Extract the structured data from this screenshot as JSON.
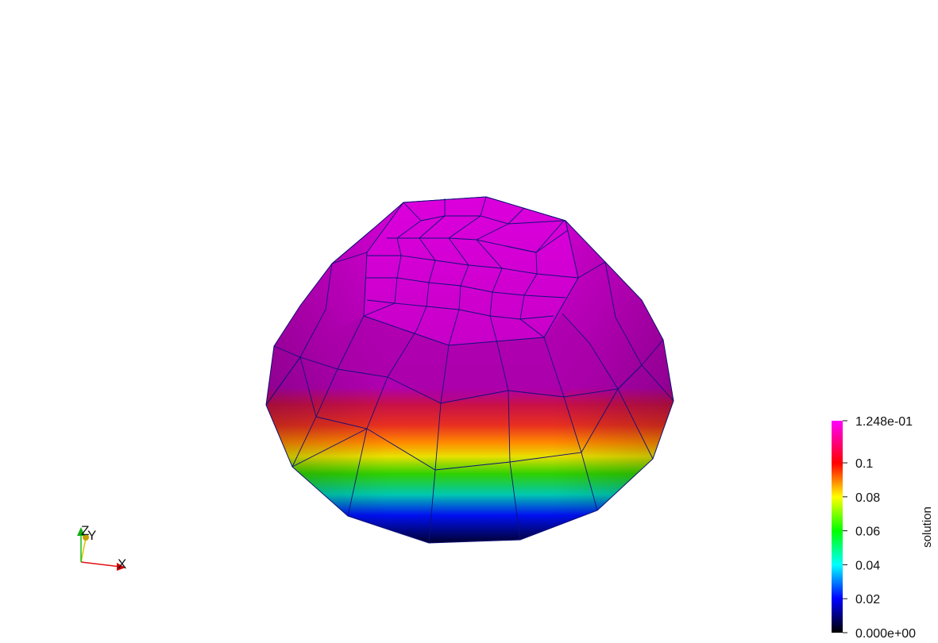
{
  "render_view": {
    "background": "#ffffff",
    "edge_color": "#10107a"
  },
  "colorbar": {
    "title": "solution",
    "max_label": "1.248e-01",
    "min_label": "0.000e+00",
    "range": [
      0,
      0.1248
    ],
    "ticks": [
      {
        "value": 0.1,
        "label": "0.1"
      },
      {
        "value": 0.08,
        "label": "0.08"
      },
      {
        "value": 0.06,
        "label": "0.06"
      },
      {
        "value": 0.04,
        "label": "0.04"
      },
      {
        "value": 0.02,
        "label": "0.02"
      }
    ],
    "colormap": [
      "#000000",
      "#0000ff",
      "#00ffff",
      "#00ff00",
      "#ffff00",
      "#ff0000",
      "#ff00ff"
    ]
  },
  "orientation_axes": {
    "x_label": "X",
    "y_label": "Y",
    "z_label": "Z",
    "x_color": "#e01010",
    "y_color": "#e0c000",
    "z_color": "#10c010"
  }
}
